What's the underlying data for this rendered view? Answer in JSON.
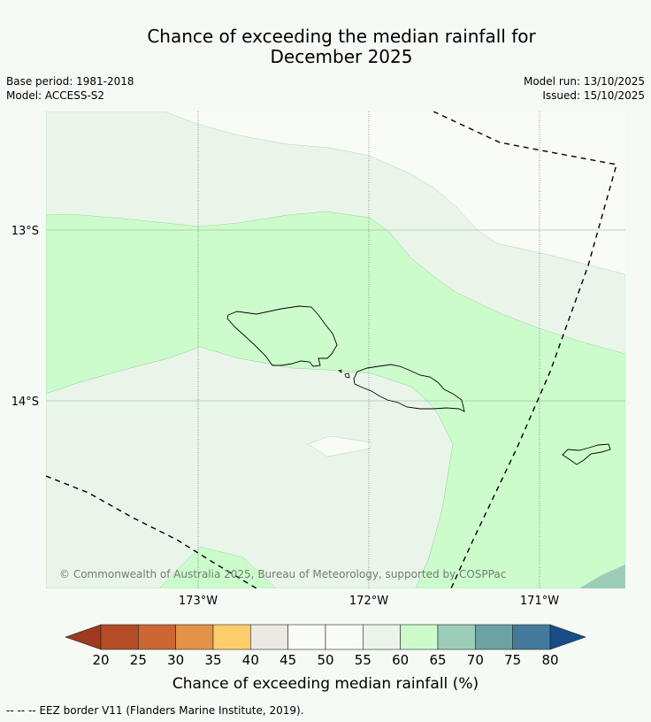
{
  "title": {
    "line1": "Chance of exceeding the median rainfall for",
    "line2": "December 2025"
  },
  "meta": {
    "base_period": "Base period: 1981-2018",
    "model": "Model: ACCESS-S2",
    "model_run": "Model run: 13/10/2025",
    "issued": "Issued: 15/10/2025"
  },
  "map": {
    "lat_labels": [
      "13°S",
      "14°S"
    ],
    "lon_labels": [
      "173°W",
      "172°W",
      "171°W"
    ],
    "copyright": "© Commonwealth of Australia 2025, Bureau of Meteorology, supported by COSPPac"
  },
  "colorbar": {
    "ticks": [
      "20",
      "25",
      "30",
      "35",
      "40",
      "45",
      "50",
      "55",
      "60",
      "65",
      "70",
      "75",
      "80"
    ],
    "label": "Chance of exceeding median rainfall (%)",
    "colors": {
      "below_20": "#9e3a1e",
      "20_25": "#b44c25",
      "25_30": "#cc6633",
      "30_35": "#e29347",
      "35_40": "#fdcd6a",
      "40_45": "#ece9e3",
      "45_50": "#f8fbf6",
      "50_55": "#f8fbf6",
      "55_60": "#eaf5ea",
      "60_65": "#ccfccc",
      "65_70": "#9dcdb8",
      "70_75": "#6ba3a4",
      "75_80": "#437a9c",
      "above_80": "#174e86"
    }
  },
  "footer": {
    "legend_symbol": "-- -- --",
    "legend_text": "EEZ border V11 (Flanders Marine Institute, 2019)."
  }
}
